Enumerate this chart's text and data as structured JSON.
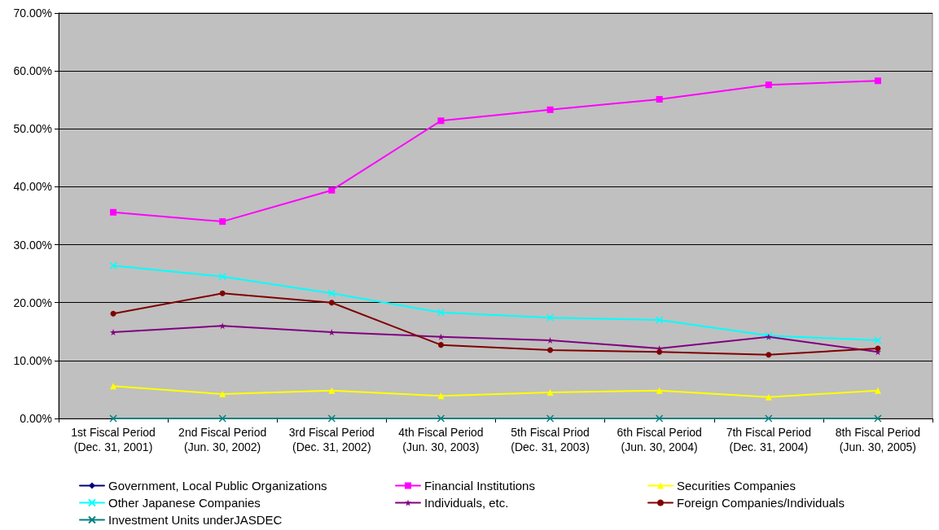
{
  "chart_data": {
    "type": "line",
    "categories": [
      "1st Fiscal Period\n(Dec. 31, 2001)",
      "2nd Fiscal Period\n(Jun. 30, 2002)",
      "3rd Fiscal Period\n(Dec. 31, 2002)",
      "4th Fiscal Period\n(Jun. 30, 2003)",
      "5th Fiscal Priod\n(Dec. 31, 2003)",
      "6th Fiscal Period\n(Jun. 30, 2004)",
      "7th Fiscal Period\n(Dec. 31, 2004)",
      "8th Fiscal Period\n(Jun. 30, 2005)"
    ],
    "series": [
      {
        "name": "Government, Local Public Organizations",
        "color": "#000080",
        "marker": "diamond",
        "values": [
          null,
          null,
          null,
          null,
          null,
          null,
          null,
          null
        ]
      },
      {
        "name": "Financial Institutions",
        "color": "#ff00ff",
        "marker": "square",
        "values": [
          35.6,
          34.0,
          39.4,
          51.4,
          53.3,
          55.1,
          57.6,
          58.3
        ]
      },
      {
        "name": "Securities Companies",
        "color": "#ffff00",
        "marker": "triangle",
        "values": [
          5.6,
          4.2,
          4.8,
          3.9,
          4.5,
          4.8,
          3.7,
          4.8
        ]
      },
      {
        "name": "Other Japanese Companies",
        "color": "#00ffff",
        "marker": "cross",
        "values": [
          26.4,
          24.5,
          21.6,
          18.3,
          17.4,
          17.0,
          14.3,
          13.5
        ]
      },
      {
        "name": "Individuals, etc.",
        "color": "#800080",
        "marker": "star",
        "values": [
          14.9,
          16.0,
          14.9,
          14.1,
          13.5,
          12.1,
          14.1,
          11.5
        ]
      },
      {
        "name": "Foreign Companies/Individuals",
        "color": "#800000",
        "marker": "circle",
        "values": [
          18.1,
          21.6,
          20.0,
          12.7,
          11.8,
          11.5,
          11.0,
          12.1
        ]
      },
      {
        "name": "Investment Units underJASDEC",
        "color": "#008080",
        "marker": "cross",
        "values": [
          0,
          0,
          0,
          0,
          0,
          0,
          0,
          0
        ]
      }
    ],
    "ylim": [
      0,
      70
    ],
    "yticks": [
      {
        "value": 0,
        "label": "0.00%"
      },
      {
        "value": 10,
        "label": "10.00%"
      },
      {
        "value": 20,
        "label": "20.00%"
      },
      {
        "value": 30,
        "label": "30.00%"
      },
      {
        "value": 40,
        "label": "40.00%"
      },
      {
        "value": 50,
        "label": "50.00%"
      },
      {
        "value": 60,
        "label": "60.00%"
      },
      {
        "value": 70,
        "label": "70.00%"
      }
    ],
    "grid": "y",
    "legend": "bottom",
    "line_style": "solid"
  }
}
